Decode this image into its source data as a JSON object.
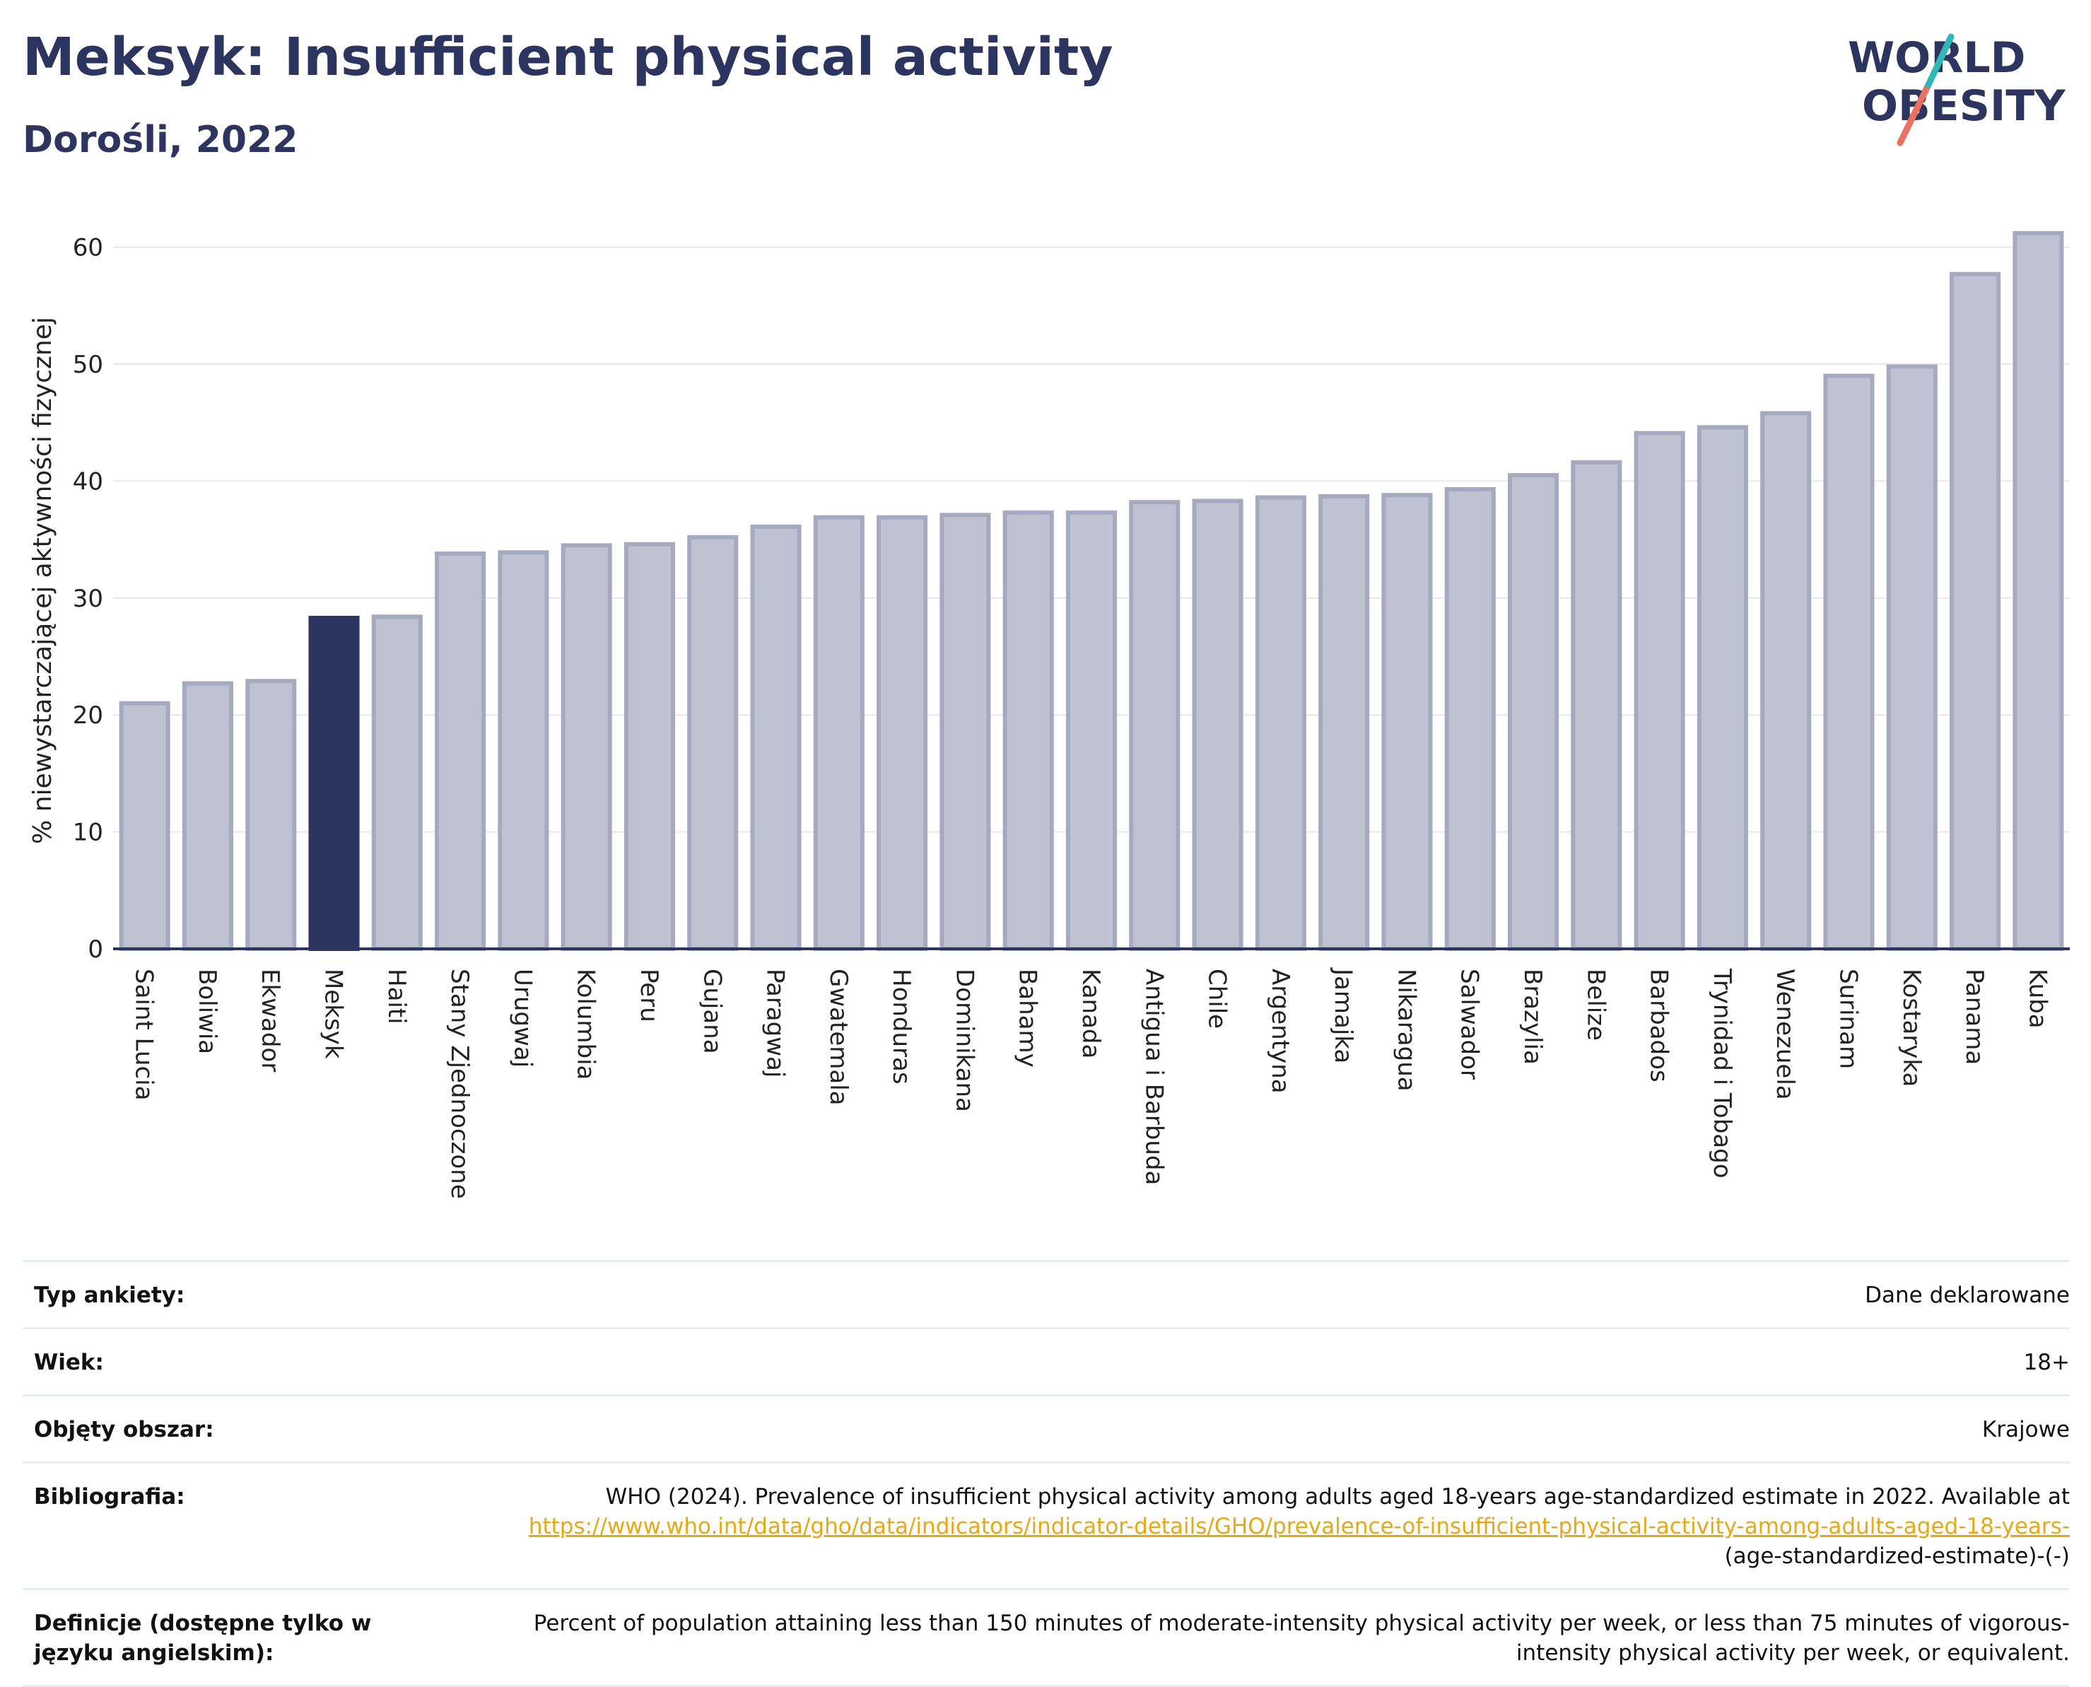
{
  "header": {
    "title": "Meksyk: Insufficient physical activity",
    "subtitle": "Dorośli, 2022"
  },
  "logo": {
    "line1": "WORLD",
    "line2": "OBESITY"
  },
  "colors": {
    "highlight": "#2b3560",
    "bar": "#bfc3d1",
    "bar_border": "#a5aac0",
    "accent_teal": "#2fb8b5",
    "accent_coral": "#e8715f"
  },
  "chart_data": {
    "type": "bar",
    "ylabel": "% niewystarczającej aktywności fizycznej",
    "ylim": [
      0,
      63
    ],
    "yticks": [
      0,
      10,
      20,
      30,
      40,
      50,
      60
    ],
    "grid": true,
    "highlight": "Meksyk",
    "categories": [
      "Saint Lucia",
      "Boliwia",
      "Ekwador",
      "Meksyk",
      "Haiti",
      "Stany Zjednoczone",
      "Urugwaj",
      "Kolumbia",
      "Peru",
      "Gujana",
      "Paragwaj",
      "Gwatemala",
      "Honduras",
      "Dominikana",
      "Bahamy",
      "Kanada",
      "Antigua i Barbuda",
      "Chile",
      "Argentyna",
      "Jamajka",
      "Nikaragua",
      "Salwador",
      "Brazylia",
      "Belize",
      "Barbados",
      "Trynidad i Tobago",
      "Wenezuela",
      "Surinam",
      "Kostaryka",
      "Panama",
      "Kuba"
    ],
    "values": [
      21.0,
      22.7,
      22.9,
      28.3,
      28.4,
      33.8,
      33.9,
      34.5,
      34.6,
      35.2,
      36.1,
      36.9,
      36.9,
      37.1,
      37.3,
      37.3,
      38.2,
      38.3,
      38.6,
      38.7,
      38.8,
      39.3,
      40.5,
      41.6,
      44.1,
      44.6,
      45.8,
      49.0,
      49.8,
      57.7,
      61.2
    ]
  },
  "meta": [
    {
      "key": "Typ ankiety:",
      "value": "Dane deklarowane"
    },
    {
      "key": "Wiek:",
      "value": "18+"
    },
    {
      "key": "Objęty obszar:",
      "value": "Krajowe"
    },
    {
      "key": "Bibliografia:",
      "value": "WHO (2024). Prevalence of insufficient physical activity among adults aged 18-years age-standardized estimate in 2022. Available at",
      "link": "https://www.who.int/data/gho/data/indicators/indicator-details/GHO/prevalence-of-insufficient-physical-activity-among-adults-aged-18-years-",
      "suffix": "(age-standardized-estimate)-(-)"
    },
    {
      "key": "Definicje (dostępne tylko w języku angielskim):",
      "value": "Percent of population attaining less than 150 minutes of moderate-intensity physical activity per week, or less than 75 minutes of vigorous-intensity physical activity per week, or equivalent."
    }
  ]
}
